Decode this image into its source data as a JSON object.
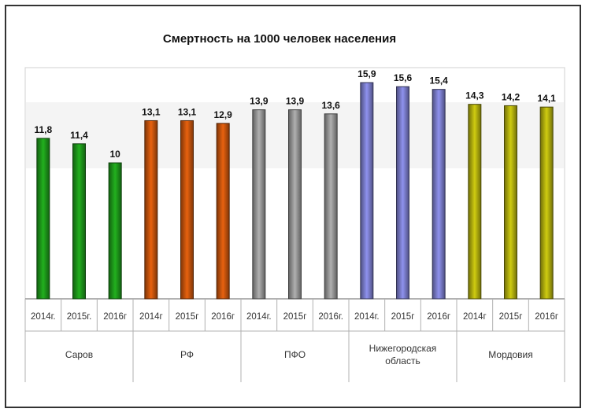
{
  "chart_data": {
    "type": "bar",
    "title": "Смертность на 1000 человек населения",
    "ylim": [
      0,
      17
    ],
    "grid": false,
    "legend": "none",
    "groups": [
      {
        "name": "Саров",
        "color": "#22b01e",
        "categories": [
          "2014г.",
          "2015г.",
          "2016г"
        ],
        "values": [
          11.8,
          11.4,
          10
        ],
        "labels": [
          "11,8",
          "11,4",
          "10"
        ]
      },
      {
        "name": "РФ",
        "color": "#e8620f",
        "categories": [
          "2014г",
          "2015г",
          "2016г"
        ],
        "values": [
          13.1,
          13.1,
          12.9
        ],
        "labels": [
          "13,1",
          "13,1",
          "12,9"
        ]
      },
      {
        "name": "ПФО",
        "color": "#b0b0b0",
        "categories": [
          "2014г.",
          "2015г",
          "2016г."
        ],
        "values": [
          13.9,
          13.9,
          13.6
        ],
        "labels": [
          "13,9",
          "13,9",
          "13,6"
        ]
      },
      {
        "name": "Нижегородская область",
        "color": "#8f92ee",
        "categories": [
          "2014г.",
          "2015г",
          "2016г"
        ],
        "values": [
          15.9,
          15.6,
          15.4
        ],
        "labels": [
          "15,9",
          "15,6",
          "15,4"
        ]
      },
      {
        "name": "Мордовия",
        "color": "#cfcc10",
        "categories": [
          "2014г",
          "2015г",
          "2016г"
        ],
        "values": [
          14.3,
          14.2,
          14.1
        ],
        "labels": [
          "14,3",
          "14,2",
          "14,1"
        ]
      }
    ]
  }
}
